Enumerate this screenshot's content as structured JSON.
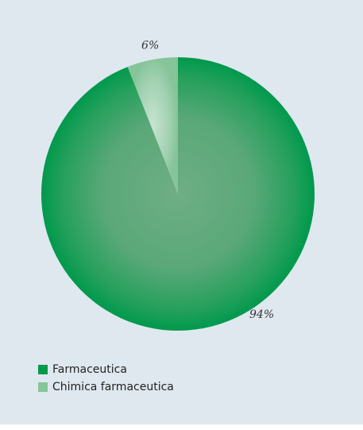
{
  "chart_data": {
    "type": "pie",
    "title": "",
    "slices": [
      {
        "label": "Farmaceutica",
        "value": 94,
        "value_label": "94%",
        "color": "#00994d"
      },
      {
        "label": "Chimica farmaceutica",
        "value": 6,
        "value_label": "6%",
        "color": "#86c49a"
      }
    ],
    "legend_position": "bottom-left"
  },
  "legend": {
    "items": [
      {
        "label": "Farmaceutica",
        "color": "#00994d"
      },
      {
        "label": "Chimica farmaceutica",
        "color": "#86c49a"
      }
    ]
  },
  "colors": {
    "background": "#dfe8ef"
  }
}
